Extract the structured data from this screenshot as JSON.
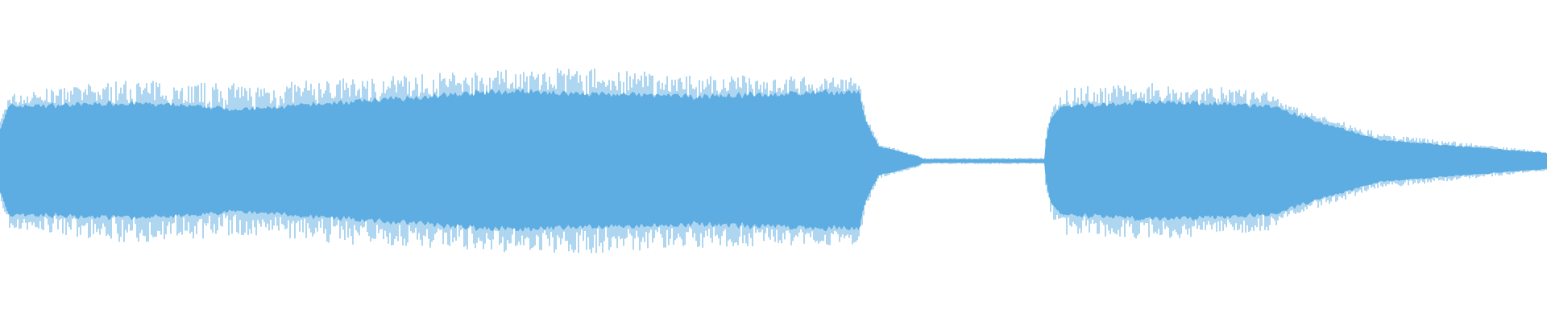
{
  "chart_data": {
    "type": "area",
    "description_kind": "audio-waveform",
    "title": "",
    "xlabel": "",
    "ylabel": "",
    "xlim": [
      0,
      1
    ],
    "ylim": [
      -1,
      1
    ],
    "grid": false,
    "legend": "none",
    "color": "#5dade2",
    "envelope": {
      "time": [
        0,
        0.006,
        0.083,
        0.16,
        0.23,
        0.32,
        0.376,
        0.446,
        0.555,
        0.5595,
        0.568,
        0.593,
        0.597,
        0.675,
        0.676,
        0.679,
        0.686,
        0.753,
        0.823,
        0.829,
        0.893,
        1.0
      ],
      "body_amplitude": [
        0.2,
        0.34,
        0.36,
        0.32,
        0.37,
        0.43,
        0.42,
        0.4,
        0.43,
        0.25,
        0.09,
        0.03,
        0.012,
        0.012,
        0.12,
        0.25,
        0.34,
        0.37,
        0.34,
        0.31,
        0.13,
        0.05
      ],
      "peak_amplitude": [
        0.25,
        0.42,
        0.51,
        0.48,
        0.52,
        0.57,
        0.58,
        0.54,
        0.52,
        0.3,
        0.11,
        0.04,
        0.02,
        0.02,
        0.15,
        0.32,
        0.46,
        0.49,
        0.43,
        0.36,
        0.17,
        0.06
      ]
    }
  }
}
